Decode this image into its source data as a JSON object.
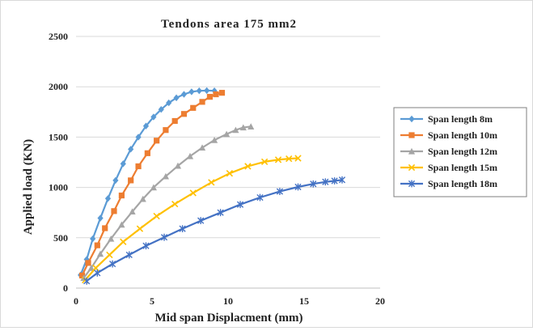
{
  "chart_data": {
    "type": "line",
    "title": "Tendons area 175 mm2",
    "xlabel": "Mid span Displacment (mm)",
    "ylabel": "Applied load (KN)",
    "xlim": [
      0,
      20
    ],
    "ylim": [
      0,
      2500
    ],
    "xticks": [
      "0",
      "5",
      "10",
      "15",
      "20"
    ],
    "yticks": [
      "0",
      "500",
      "1000",
      "1500",
      "2000",
      "2500"
    ],
    "grid": "horizontal",
    "legend_position": "right",
    "series": [
      {
        "name": "Span length 8m",
        "color": "#5B9BD5",
        "marker": "diamond",
        "x": [
          0.3,
          0.7,
          1.1,
          1.6,
          2.1,
          2.6,
          3.1,
          3.6,
          4.1,
          4.6,
          5.1,
          5.6,
          6.1,
          6.6,
          7.1,
          7.6,
          8.1,
          8.6,
          9.1
        ],
        "y": [
          130,
          285,
          490,
          695,
          890,
          1070,
          1235,
          1380,
          1500,
          1610,
          1700,
          1775,
          1840,
          1890,
          1925,
          1950,
          1960,
          1962,
          1960
        ]
      },
      {
        "name": "Span length 10m",
        "color": "#ED7D31",
        "marker": "square",
        "x": [
          0.4,
          0.8,
          1.4,
          1.9,
          2.5,
          3.0,
          3.6,
          4.1,
          4.7,
          5.3,
          5.9,
          6.5,
          7.1,
          7.7,
          8.3,
          8.8,
          9.2,
          9.6
        ],
        "y": [
          125,
          250,
          425,
          595,
          765,
          920,
          1070,
          1210,
          1340,
          1465,
          1570,
          1660,
          1730,
          1790,
          1850,
          1900,
          1925,
          1940
        ]
      },
      {
        "name": "Span length 12m",
        "color": "#A5A5A5",
        "marker": "triangle",
        "x": [
          0.5,
          1.0,
          1.6,
          2.3,
          3.0,
          3.7,
          4.4,
          5.1,
          5.9,
          6.7,
          7.5,
          8.3,
          9.1,
          9.9,
          10.5,
          11.0,
          11.5
        ],
        "y": [
          100,
          200,
          340,
          490,
          630,
          760,
          885,
          1000,
          1110,
          1215,
          1310,
          1395,
          1470,
          1530,
          1570,
          1595,
          1605
        ]
      },
      {
        "name": "Span length 15m",
        "color": "#FFC000",
        "marker": "x",
        "x": [
          0.6,
          1.3,
          2.2,
          3.1,
          4.2,
          5.3,
          6.5,
          7.7,
          8.9,
          10.1,
          11.3,
          12.4,
          13.3,
          14.0,
          14.6
        ],
        "y": [
          80,
          200,
          330,
          460,
          590,
          715,
          835,
          945,
          1050,
          1140,
          1210,
          1255,
          1275,
          1285,
          1290
        ]
      },
      {
        "name": "Span length 18m",
        "color": "#4472C4",
        "marker": "star",
        "x": [
          0.7,
          1.4,
          2.4,
          3.5,
          4.6,
          5.8,
          7.0,
          8.2,
          9.5,
          10.8,
          12.1,
          13.4,
          14.6,
          15.6,
          16.4,
          17.0,
          17.5
        ],
        "y": [
          70,
          150,
          240,
          330,
          420,
          505,
          590,
          670,
          750,
          830,
          900,
          960,
          1005,
          1035,
          1055,
          1065,
          1075
        ]
      }
    ]
  }
}
